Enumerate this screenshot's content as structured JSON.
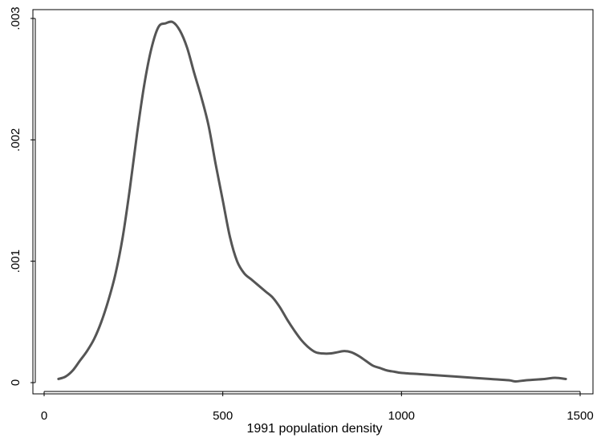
{
  "chart_data": {
    "type": "line",
    "title": "",
    "xlabel": "1991 population density",
    "ylabel": "",
    "xlim": [
      0,
      1500
    ],
    "ylim": [
      0,
      0.003
    ],
    "xticks": [
      {
        "value": 0,
        "label": "0"
      },
      {
        "value": 500,
        "label": "500"
      },
      {
        "value": 1000,
        "label": "1000"
      },
      {
        "value": 1500,
        "label": "1500"
      }
    ],
    "yticks": [
      {
        "value": 0,
        "label": "0"
      },
      {
        "value": 0.001,
        "label": ".001"
      },
      {
        "value": 0.002,
        "label": ".002"
      },
      {
        "value": 0.003,
        "label": ".003"
      }
    ],
    "grid": false,
    "legend": "none",
    "series": [
      {
        "color": "#555555",
        "x": [
          40,
          60,
          80,
          100,
          120,
          140,
          160,
          180,
          200,
          220,
          240,
          260,
          280,
          300,
          320,
          340,
          360,
          380,
          400,
          420,
          440,
          460,
          480,
          500,
          520,
          540,
          560,
          580,
          600,
          620,
          640,
          660,
          680,
          700,
          720,
          740,
          760,
          780,
          800,
          820,
          840,
          860,
          880,
          900,
          920,
          940,
          960,
          980,
          1000,
          1050,
          1100,
          1150,
          1200,
          1250,
          1300,
          1320,
          1350,
          1400,
          1430,
          1460
        ],
        "values": [
          3e-05,
          5e-05,
          0.0001,
          0.00018,
          0.00026,
          0.00036,
          0.0005,
          0.00068,
          0.0009,
          0.0012,
          0.0016,
          0.00205,
          0.00245,
          0.00275,
          0.00293,
          0.00296,
          0.00297,
          0.0029,
          0.00276,
          0.00255,
          0.00235,
          0.00212,
          0.0018,
          0.0015,
          0.0012,
          0.001,
          0.0009,
          0.00085,
          0.0008,
          0.00075,
          0.0007,
          0.00062,
          0.00052,
          0.00043,
          0.00035,
          0.00029,
          0.00025,
          0.00024,
          0.00024,
          0.00025,
          0.00026,
          0.00025,
          0.00022,
          0.00018,
          0.00014,
          0.00012,
          0.0001,
          9e-05,
          8e-05,
          7e-05,
          6e-05,
          5e-05,
          4e-05,
          3e-05,
          2e-05,
          1e-05,
          2e-05,
          3e-05,
          4e-05,
          3e-05
        ]
      }
    ]
  }
}
